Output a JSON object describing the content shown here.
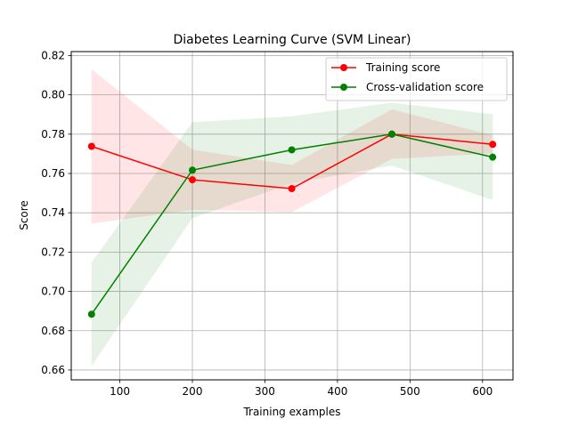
{
  "chart_data": {
    "type": "line",
    "title": "Diabetes Learning Curve (SVM Linear)",
    "xlabel": "Training examples",
    "ylabel": "Score",
    "xlim": [
      33,
      642
    ],
    "ylim": [
      0.655,
      0.822
    ],
    "xticks": [
      100,
      200,
      300,
      400,
      500,
      600
    ],
    "yticks": [
      0.66,
      0.68,
      0.7,
      0.72,
      0.74,
      0.76,
      0.78,
      0.8,
      0.82
    ],
    "xtick_labels": [
      "100",
      "200",
      "300",
      "400",
      "500",
      "600"
    ],
    "ytick_labels": [
      "0.66",
      "0.68",
      "0.70",
      "0.72",
      "0.74",
      "0.76",
      "0.78",
      "0.80",
      "0.82"
    ],
    "grid": true,
    "legend_position": "top-right",
    "x": [
      61,
      200,
      337,
      475,
      614
    ],
    "series": [
      {
        "name": "Training score",
        "color": "#ff0000",
        "band_color": "#ff0000",
        "marker": "circle",
        "values": [
          0.7738,
          0.7568,
          0.7523,
          0.78,
          0.7748
        ],
        "lower": [
          0.7345,
          0.7415,
          0.7403,
          0.7674,
          0.7702
        ],
        "upper": [
          0.8131,
          0.7721,
          0.7643,
          0.7926,
          0.7794
        ]
      },
      {
        "name": "Cross-validation score",
        "color": "#008000",
        "band_color": "#008000",
        "marker": "circle",
        "values": [
          0.6884,
          0.7617,
          0.772,
          0.78,
          0.7683
        ],
        "lower": [
          0.6621,
          0.7373,
          0.7549,
          0.764,
          0.7465
        ],
        "upper": [
          0.7147,
          0.7861,
          0.7891,
          0.796,
          0.7901
        ]
      }
    ]
  }
}
